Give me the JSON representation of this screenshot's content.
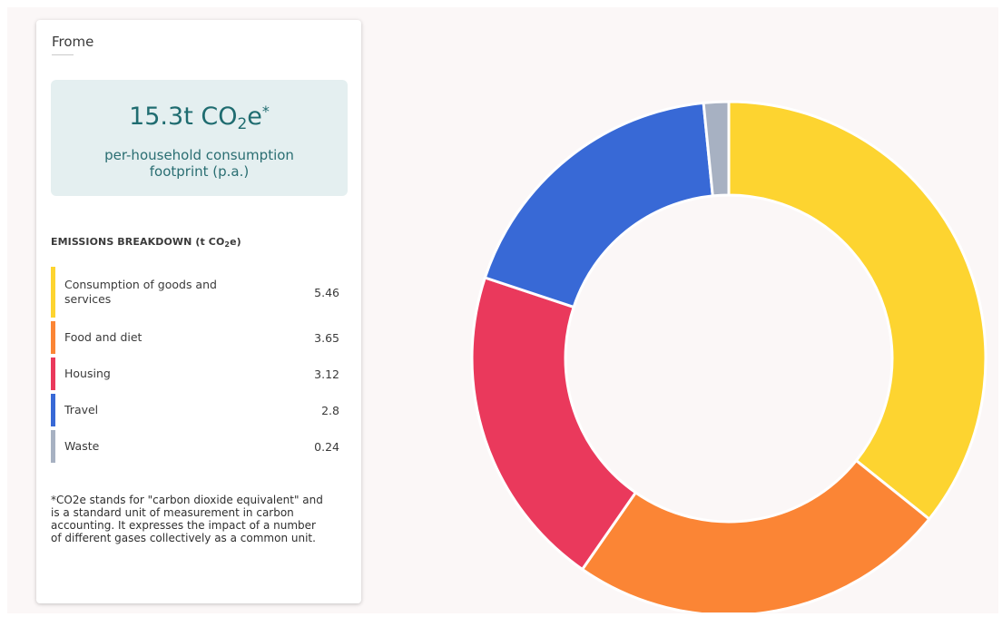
{
  "panel": {
    "title": "Frome",
    "footprint": {
      "value": "15.3t CO",
      "sub": "2",
      "tail": "e",
      "sup": "*",
      "description": "per-household consumption footprint (p.a.)"
    },
    "breakdown_heading": {
      "text": "EMISSIONS BREAKDOWN (t CO",
      "sub": "2",
      "tail": "e)"
    },
    "footnote": "*CO2e stands for \"carbon dioxide equivalent\" and is a standard unit of measurement in carbon accounting. It expresses the impact of a number of different gases collectively as a common unit."
  },
  "chart_data": {
    "type": "pie",
    "variant": "donut",
    "categories": [
      "Consumption of goods and services",
      "Food and diet",
      "Housing",
      "Travel",
      "Waste"
    ],
    "values": [
      5.46,
      3.65,
      3.12,
      2.8,
      0.24
    ],
    "value_labels": [
      "5.46",
      "3.65",
      "3.12",
      "2.8",
      "0.24"
    ],
    "colors": [
      "#fdd430",
      "#fb8535",
      "#ea395c",
      "#3869d6",
      "#a7b1c2"
    ]
  }
}
